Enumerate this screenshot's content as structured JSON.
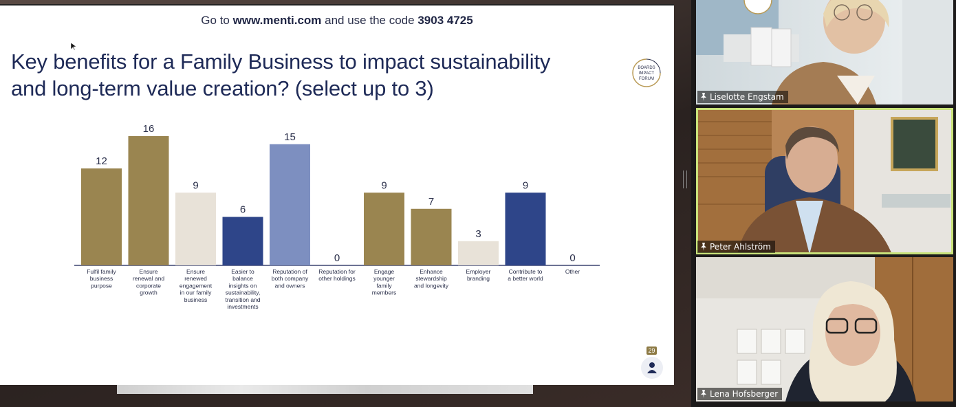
{
  "slide": {
    "join_prefix": "Go to",
    "join_url": "www.menti.com",
    "join_middle": "and use the code",
    "join_code": "3903 4725",
    "title_line1": "Key benefits for a Family Business to impact sustainability",
    "title_line2": "and long-term value creation? (select up to 3)",
    "logo_lines": [
      "BOARDS",
      "IMPACT",
      "FORUM"
    ],
    "participant_count": "29"
  },
  "chart_data": {
    "type": "bar",
    "categories": [
      [
        "Fulfil family",
        "business",
        "purpose"
      ],
      [
        "Ensure",
        "renewal and",
        "corporate",
        "growth"
      ],
      [
        "Ensure",
        "renewed",
        "engagement",
        "in our family",
        "business"
      ],
      [
        "Easier to",
        "balance",
        "insights on",
        "sustainability,",
        "transition and",
        "investments"
      ],
      [
        "Reputation of",
        "both company",
        "and owners"
      ],
      [
        "Reputation for",
        "other holdings"
      ],
      [
        "Engage",
        "younger",
        "family",
        "members"
      ],
      [
        "Enhance",
        "stewardship",
        "and longevity"
      ],
      [
        "Employer",
        "branding"
      ],
      [
        "Contribute to",
        "a better world"
      ],
      [
        "Other"
      ]
    ],
    "values": [
      12,
      16,
      9,
      6,
      15,
      0,
      9,
      7,
      3,
      9,
      0
    ],
    "colors": [
      "#9a8550",
      "#9a8550",
      "#e8e2d8",
      "#2e4589",
      "#7d8fc0",
      "#9a8550",
      "#9a8550",
      "#9a8550",
      "#e8e2d8",
      "#2e4589",
      "#9a8550"
    ],
    "ylim": [
      0,
      16
    ],
    "grid": false
  },
  "participants": [
    {
      "name": "Liselotte Engstam"
    },
    {
      "name": "Peter Ahlström"
    },
    {
      "name": "Lena Hofsberger"
    }
  ],
  "icons": {
    "pin": "pin-icon",
    "person": "person-icon",
    "cursor": "cursor-icon"
  }
}
